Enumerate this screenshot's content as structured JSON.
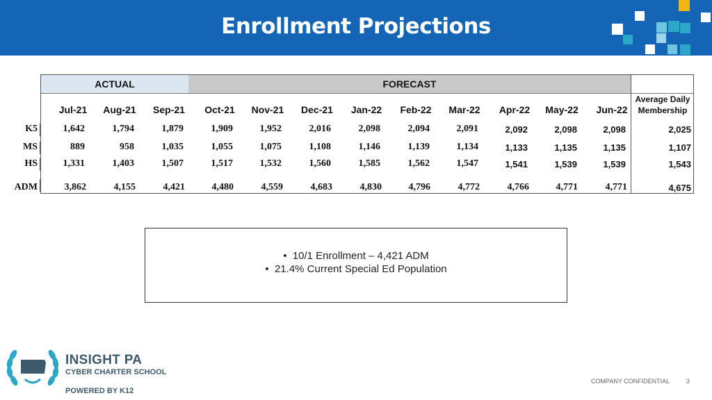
{
  "header": {
    "title": "Enrollment Projections"
  },
  "colors": {
    "header_bg": "#1565b6",
    "actual_band": "#dce6f2",
    "forecast_band": "#c9c9c9",
    "logo_teal": "#2aa7c9",
    "logo_yellow": "#f2b517"
  },
  "table": {
    "actual_label": "ACTUAL",
    "forecast_label": "FORECAST",
    "avg_header_line1": "Average Daily",
    "avg_header_line2": "Membership",
    "months": [
      "Jul-21",
      "Aug-21",
      "Sep-21",
      "Oct-21",
      "Nov-21",
      "Dec-21",
      "Jan-22",
      "Feb-22",
      "Mar-22",
      "Apr-22",
      "May-22",
      "Jun-22"
    ],
    "rows": [
      {
        "label": "K5",
        "values": [
          "1,642",
          "1,794",
          "1,879",
          "1,909",
          "1,952",
          "2,016",
          "2,098",
          "2,094",
          "2,091",
          "2,092",
          "2,098",
          "2,098"
        ],
        "avg": "2,025"
      },
      {
        "label": "MS",
        "values": [
          "889",
          "958",
          "1,035",
          "1,055",
          "1,075",
          "1,108",
          "1,146",
          "1,139",
          "1,134",
          "1,133",
          "1,135",
          "1,135"
        ],
        "avg": "1,107"
      },
      {
        "label": "HS",
        "values": [
          "1,331",
          "1,403",
          "1,507",
          "1,517",
          "1,532",
          "1,560",
          "1,585",
          "1,562",
          "1,547",
          "1,541",
          "1,539",
          "1,539"
        ],
        "avg": "1,543"
      },
      {
        "label": "ADM",
        "values": [
          "3,862",
          "4,155",
          "4,421",
          "4,480",
          "4,559",
          "4,683",
          "4,830",
          "4,796",
          "4,772",
          "4,766",
          "4,771",
          "4,771"
        ],
        "avg": "4,675"
      }
    ]
  },
  "notes": {
    "items": [
      "10/1 Enrollment – 4,421 ADM",
      "21.4% Current Special Ed Population"
    ]
  },
  "footer": {
    "logo_line1": "INSIGHT PA",
    "logo_line2": "CYBER CHARTER SCHOOL",
    "logo_line3": "POWERED BY K12",
    "confidential": "COMPANY CONFIDENTIAL",
    "page_number": "3"
  }
}
